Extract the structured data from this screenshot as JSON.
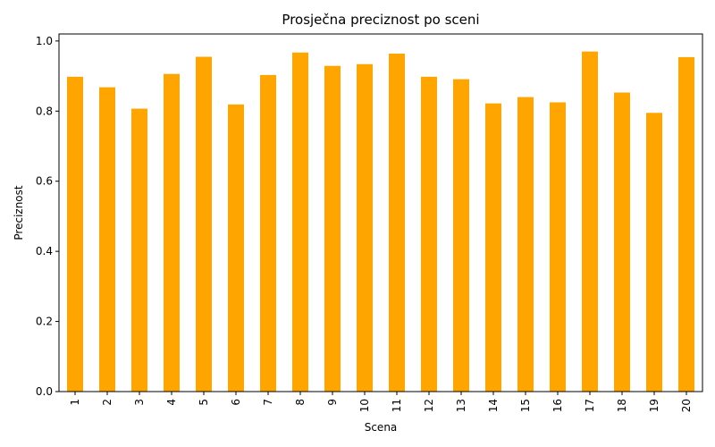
{
  "chart_data": {
    "type": "bar",
    "title": "Prosječna preciznost po sceni",
    "xlabel": "Scena",
    "ylabel": "Preciznost",
    "categories": [
      "1",
      "2",
      "3",
      "4",
      "5",
      "6",
      "7",
      "8",
      "9",
      "10",
      "11",
      "12",
      "13",
      "14",
      "15",
      "16",
      "17",
      "18",
      "19",
      "20"
    ],
    "values": [
      0.898,
      0.868,
      0.807,
      0.906,
      0.955,
      0.819,
      0.903,
      0.967,
      0.929,
      0.934,
      0.964,
      0.898,
      0.891,
      0.822,
      0.84,
      0.825,
      0.97,
      0.853,
      0.795,
      0.954
    ],
    "ylim": [
      0,
      1.02
    ],
    "yticks": [
      "0.0",
      "0.2",
      "0.4",
      "0.6",
      "0.8",
      "1.0"
    ],
    "bar_color": "#FFA500",
    "grid": false,
    "legend": "none"
  }
}
